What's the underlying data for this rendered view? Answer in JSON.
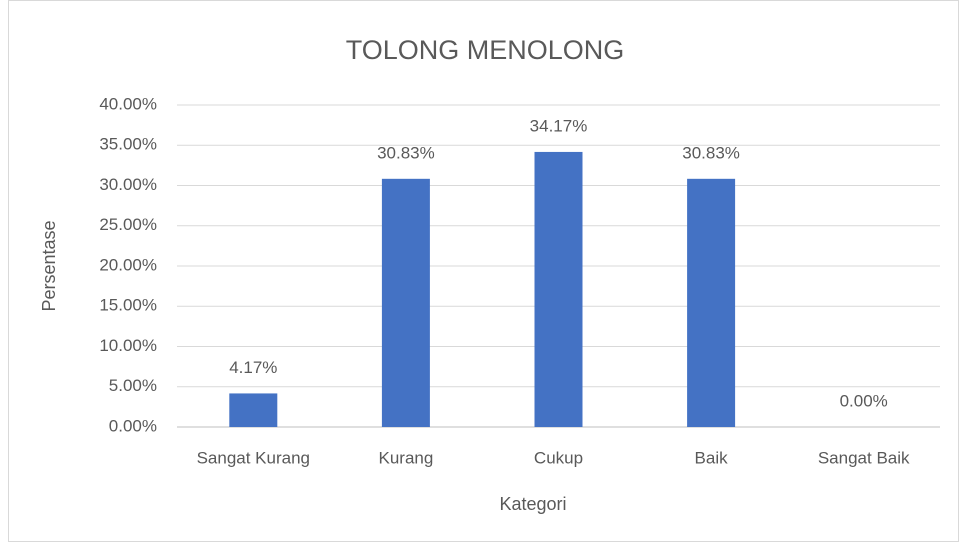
{
  "chart_data": {
    "type": "bar",
    "title": "TOLONG MENOLONG",
    "x_label": "Kategori",
    "y_label": "Persentase",
    "categories": [
      "Sangat Kurang",
      "Kurang",
      "Cukup",
      "Baik",
      "Sangat Baik"
    ],
    "values": [
      4.17,
      30.83,
      34.17,
      30.83,
      0
    ],
    "value_labels": [
      "4.17%",
      "30.83%",
      "34.17%",
      "30.83%",
      "0.00%"
    ],
    "color": "#4472c4",
    "ylim": [
      0,
      40
    ],
    "yticks": [
      {
        "value": 0,
        "label": "0.00%"
      },
      {
        "value": 5,
        "label": "5.00%"
      },
      {
        "value": 10,
        "label": "10.00%"
      },
      {
        "value": 15,
        "label": "15.00%"
      },
      {
        "value": 20,
        "label": "20.00%"
      },
      {
        "value": 25,
        "label": "25.00%"
      },
      {
        "value": 30,
        "label": "30.00%"
      },
      {
        "value": 35,
        "label": "35.00%"
      },
      {
        "value": 40,
        "label": "40.00%"
      }
    ],
    "grid": true
  }
}
